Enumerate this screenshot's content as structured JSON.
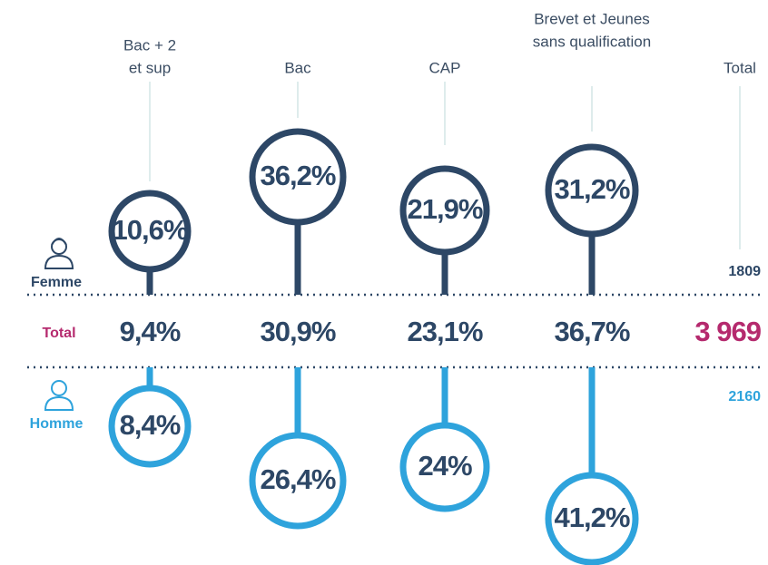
{
  "rows": {
    "femme": "Femme",
    "total": "Total",
    "homme": "Homme"
  },
  "columns": [
    {
      "label": [
        "Bac + 2",
        "et sup"
      ],
      "femme": "10,6%",
      "total": "9,4%",
      "homme": "8,4%"
    },
    {
      "label": [
        "Bac"
      ],
      "femme": "36,2%",
      "total": "30,9%",
      "homme": "26,4%"
    },
    {
      "label": [
        "CAP"
      ],
      "femme": "21,9%",
      "total": "23,1%",
      "homme": "24%"
    },
    {
      "label": [
        "Brevet et Jeunes",
        "sans qualification"
      ],
      "femme": "31,2%",
      "total": "36,7%",
      "homme": "41,2%"
    }
  ],
  "total_column": {
    "label": "Total",
    "femme": "1809",
    "total": "3 969",
    "homme": "2160"
  }
}
